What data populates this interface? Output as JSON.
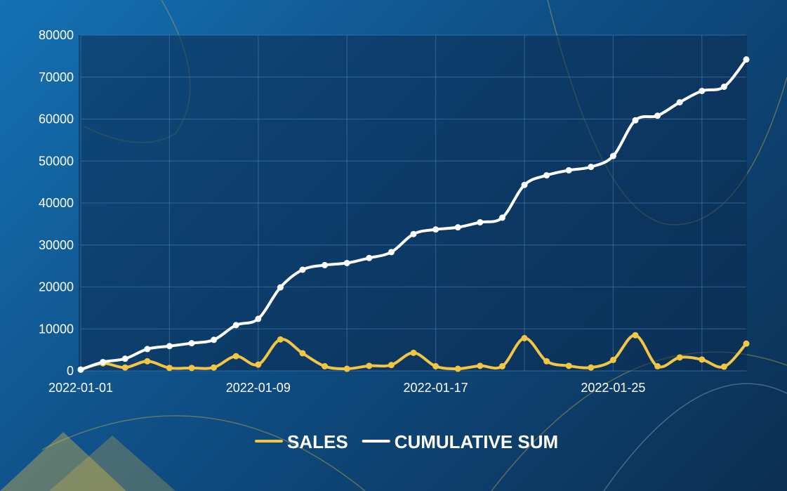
{
  "chart_data": {
    "type": "line",
    "x": [
      "2022-01-01",
      "2022-01-02",
      "2022-01-03",
      "2022-01-04",
      "2022-01-05",
      "2022-01-06",
      "2022-01-07",
      "2022-01-08",
      "2022-01-09",
      "2022-01-10",
      "2022-01-11",
      "2022-01-12",
      "2022-01-13",
      "2022-01-14",
      "2022-01-15",
      "2022-01-16",
      "2022-01-17",
      "2022-01-18",
      "2022-01-19",
      "2022-01-20",
      "2022-01-21",
      "2022-01-22",
      "2022-01-23",
      "2022-01-24",
      "2022-01-25",
      "2022-01-26",
      "2022-01-27",
      "2022-01-28",
      "2022-01-29",
      "2022-01-30",
      "2022-01-31"
    ],
    "xticks": [
      "2022-01-01",
      "2022-01-09",
      "2022-01-17",
      "2022-01-25"
    ],
    "ylim": [
      0,
      80000
    ],
    "yticks": [
      0,
      10000,
      20000,
      30000,
      40000,
      50000,
      60000,
      70000,
      80000
    ],
    "grid": true,
    "legend_position": "bottom",
    "series": [
      {
        "name": "SALES",
        "color": "#f4c542",
        "values": [
          300,
          1800,
          800,
          2300,
          700,
          700,
          800,
          3500,
          1500,
          7500,
          4200,
          1100,
          500,
          1200,
          1400,
          4300,
          1100,
          500,
          1200,
          1100,
          7800,
          2300,
          1200,
          800,
          2600,
          8500,
          1100,
          3200,
          2700,
          1000,
          6500
        ]
      },
      {
        "name": "CUMULATIVE SUM",
        "color": "#ffffff",
        "values": [
          300,
          2100,
          2900,
          5200,
          5900,
          6600,
          7400,
          10900,
          12400,
          19900,
          24100,
          25200,
          25700,
          26900,
          28300,
          32600,
          33700,
          34200,
          35400,
          36500,
          44300,
          46600,
          47800,
          48600,
          51200,
          59700,
          60800,
          64000,
          66700,
          67700,
          74200
        ]
      }
    ]
  }
}
